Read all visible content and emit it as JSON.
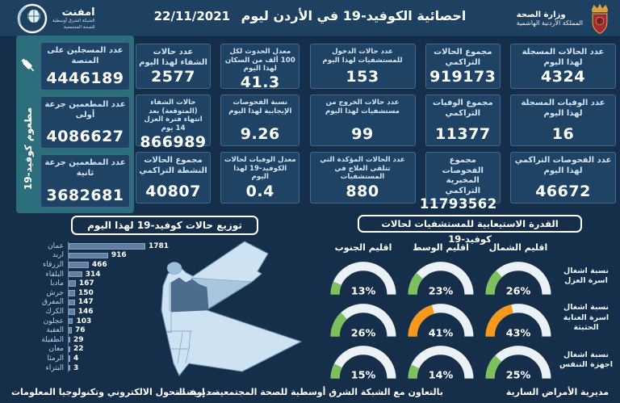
{
  "header": {
    "title": "احصائية الكوفيد-19 في الأردن ليوم",
    "date": "22/11/2021",
    "ministry": {
      "name": "وزارة الصحة",
      "kingdom": "المملكة الأردنية الهاشمية"
    },
    "emphnet": {
      "name": "امفنت",
      "sub1": "الشبكة الشرق أوسطية",
      "sub2": "للصحة المجتمعية"
    }
  },
  "stats": {
    "columns": [
      {
        "cards": [
          {
            "label": "عدد الحالات المسجلة لهذا اليوم",
            "value": "4324"
          },
          {
            "label": "عدد الوفيات المسجلة لهذا اليوم",
            "value": "16"
          },
          {
            "label": "عدد الفحوصات التراكمي لهذا اليوم",
            "value": "46672"
          }
        ]
      },
      {
        "cards": [
          {
            "label": "مجموع الحالات التراكمي",
            "value": "919173"
          },
          {
            "label": "مجموع الوفيات التراكمي",
            "value": "11377"
          },
          {
            "label": "مجموع الفحوصات المخبرية التراكمي",
            "value": "11793562"
          }
        ]
      },
      {
        "cards": [
          {
            "label": "عدد حالات الدخول للمستشفيات لهذا اليوم",
            "value": "153"
          },
          {
            "label": "عدد حالات الخروج من مستشفيات لهذا اليوم",
            "value": "99"
          },
          {
            "label": "عدد الحالات المؤكدة التي تتلقى العلاج في المستشفيات",
            "value": "880"
          }
        ]
      },
      {
        "cards": [
          {
            "label": "معدل الحدوث لكل 100 ألف من السكان لهذا اليوم",
            "value": "41.3"
          },
          {
            "label": "نسبة الفحوصات الإيجابية لهذا اليوم",
            "value": "9.26"
          },
          {
            "label": "معدل الوفيات لحالات الكوفيد-19 لهذا اليوم",
            "value": "0.4"
          }
        ]
      },
      {
        "cards": [
          {
            "label": "عدد حالات الشفاء لهذا اليوم",
            "value": "2577"
          },
          {
            "label": "حالات الشفاء (المتوقعة) بعد انتهاء فترة العزل 14 يوم",
            "value": "866989"
          },
          {
            "label": "مجموع الحالات النشطة التراكمي",
            "value": "40807"
          }
        ]
      }
    ]
  },
  "vaccine": {
    "side_label": "مطعوم كوفيد-19",
    "cards": [
      {
        "label": "عدد المسجلين على المنصة",
        "value": "4446189"
      },
      {
        "label": "عدد المطعمين جرعة أولى",
        "value": "4086627"
      },
      {
        "label": "عدد المطعمين جرعة ثانية",
        "value": "3682681"
      }
    ]
  },
  "chart_data": [
    {
      "type": "bar",
      "title": "توزيع حالات كوفيد-19 لهذا اليوم",
      "orientation": "horizontal",
      "categories": [
        "عمان",
        "اربد",
        "الزرقاء",
        "البلقاء",
        "مادبا",
        "جرش",
        "المفرق",
        "الكرك",
        "عجلون",
        "العقبة",
        "الطفيلة",
        "معان",
        "الرمثا",
        "البتراء"
      ],
      "values": [
        1781,
        916,
        466,
        314,
        167,
        150,
        147,
        146,
        103,
        76,
        29,
        22,
        4,
        3
      ],
      "xlim": [
        0,
        1800
      ],
      "bar_color": "#5f80a2",
      "label_color": "#b9d2ea"
    },
    {
      "type": "gauge-grid",
      "title": "القدرة الاستيعابية للمستشفيات لحالات كوفيد-19",
      "regions": [
        "اقليم الشمال",
        "اقليم الوسط",
        "اقليم الجنوب"
      ],
      "rows": [
        {
          "label": "نسبة اشغال اسرة العزل",
          "values": [
            26,
            23,
            13
          ]
        },
        {
          "label": "نسبة اشغال اسرة العناية الحثيثة",
          "values": [
            43,
            41,
            26
          ]
        },
        {
          "label": "نسبة اشغال اجهزة التنفس",
          "values": [
            25,
            14,
            15
          ]
        }
      ],
      "unit": "%",
      "high_threshold": 40,
      "colors": {
        "low": "#7cc15e",
        "high": "#f5991d",
        "track": "#ecf1f6"
      }
    }
  ],
  "footer": {
    "right": "مديرية الأمراض السارية",
    "center": "بالتعاون مع الشبكة الشرق أوسطية للصحة المجتمعية - إمفنت",
    "left": "مديرية التحول الالكتروني وتكنولوجيا المعلومات"
  }
}
